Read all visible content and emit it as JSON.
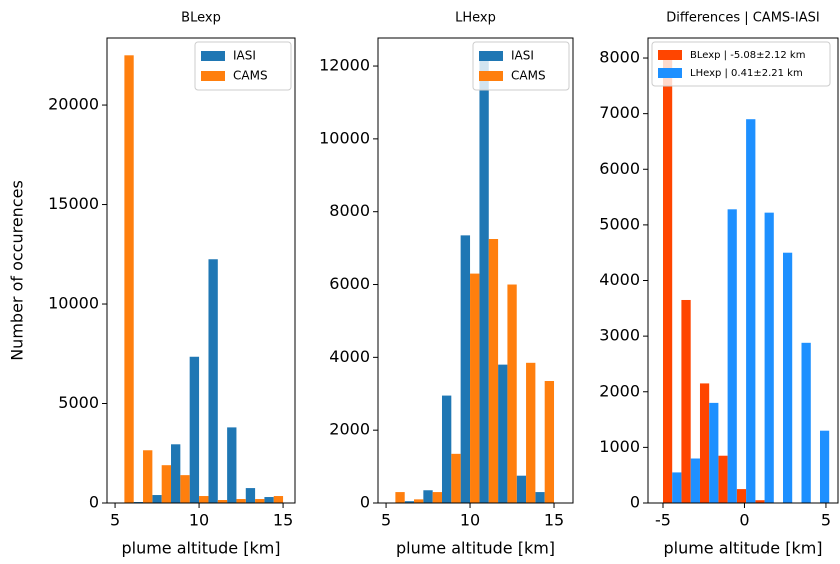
{
  "chart_data": [
    {
      "type": "histogram",
      "title": "BLexp",
      "xlabel": "plume altitude [km]",
      "ylabel": "Number of occurences",
      "bins": [
        5.0,
        6.11,
        7.22,
        8.33,
        9.44,
        10.56,
        11.67,
        12.78,
        13.89,
        15.0
      ],
      "series": [
        {
          "name": "IASI",
          "color": "#1f77b4",
          "values": [
            0,
            50,
            400,
            2950,
            7350,
            12250,
            3800,
            750,
            300
          ]
        },
        {
          "name": "CAMS",
          "color": "#ff7f0e",
          "values": [
            22500,
            2650,
            1900,
            1400,
            350,
            150,
            200,
            200,
            350
          ]
        }
      ],
      "xlim": [
        4.52,
        15.71
      ],
      "ylim": [
        0,
        23370
      ],
      "xticks": [
        5,
        10,
        15
      ],
      "yticks": [
        0,
        5000,
        10000,
        15000,
        20000
      ],
      "legend": "upper right"
    },
    {
      "type": "histogram",
      "title": "LHexp",
      "xlabel": "plume altitude [km]",
      "bins": [
        5.0,
        6.11,
        7.22,
        8.33,
        9.44,
        10.56,
        11.67,
        12.78,
        13.89,
        15.0
      ],
      "series": [
        {
          "name": "IASI",
          "color": "#1f77b4",
          "values": [
            0,
            50,
            350,
            2950,
            7350,
            12250,
            3800,
            750,
            300
          ]
        },
        {
          "name": "CAMS",
          "color": "#ff7f0e",
          "values": [
            300,
            100,
            300,
            1350,
            6300,
            7250,
            6000,
            3850,
            3350
          ]
        }
      ],
      "xlim": [
        4.52,
        16.13
      ],
      "ylim": [
        0,
        12770
      ],
      "xticks": [
        5,
        10,
        15
      ],
      "yticks": [
        0,
        2000,
        4000,
        6000,
        8000,
        10000,
        12000
      ],
      "legend": "upper right"
    },
    {
      "type": "histogram",
      "title": "Differences | CAMS-IASI",
      "xlabel": "plume altitude [km]",
      "bins": [
        -5.0,
        -3.87,
        -2.73,
        -1.6,
        -0.47,
        0.67,
        1.8,
        2.93,
        4.07,
        5.2
      ],
      "series": [
        {
          "name": "BLexp | -5.08±2.12 km",
          "color": "#ff4500",
          "values": [
            8050,
            3650,
            2150,
            850,
            250,
            50,
            0,
            0,
            0
          ]
        },
        {
          "name": "LHexp | 0.41±2.21 km",
          "color": "#1e90ff",
          "values": [
            550,
            800,
            1800,
            5280,
            6900,
            5220,
            4500,
            2880,
            1300
          ]
        }
      ],
      "xlim": [
        -5.92,
        5.74
      ],
      "ylim": [
        0,
        8360
      ],
      "xticks": [
        -5,
        0,
        5
      ],
      "yticks": [
        0,
        1000,
        2000,
        3000,
        4000,
        5000,
        6000,
        7000,
        8000
      ],
      "legend": "upper left"
    }
  ]
}
